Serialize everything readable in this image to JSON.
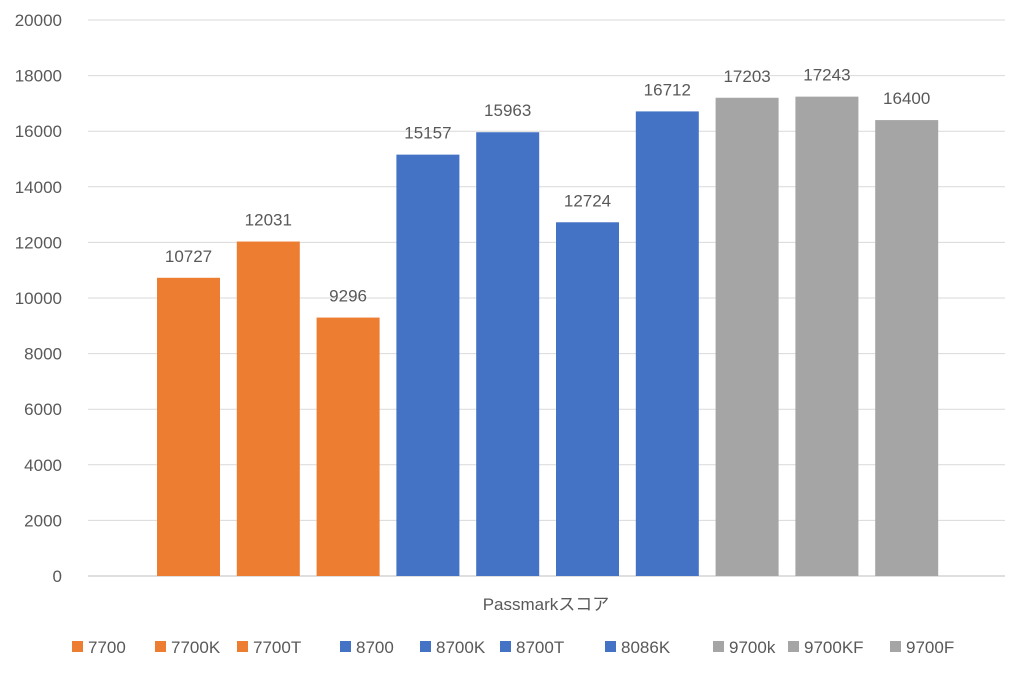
{
  "chart_data": {
    "type": "bar",
    "title": "",
    "xlabel": "Passmarkスコア",
    "ylabel": "",
    "ylim": [
      0,
      20000
    ],
    "yticks": [
      0,
      2000,
      4000,
      6000,
      8000,
      10000,
      12000,
      14000,
      16000,
      18000,
      20000
    ],
    "grid": true,
    "legend_position": "bottom",
    "categories": [
      "Passmarkスコア"
    ],
    "series": [
      {
        "name": "7700",
        "values": [
          10727
        ],
        "color": "#ED7D31"
      },
      {
        "name": "7700K",
        "values": [
          12031
        ],
        "color": "#ED7D31"
      },
      {
        "name": "7700T",
        "values": [
          9296
        ],
        "color": "#ED7D31"
      },
      {
        "name": "8700",
        "values": [
          15157
        ],
        "color": "#4472C4"
      },
      {
        "name": "8700K",
        "values": [
          15963
        ],
        "color": "#4472C4"
      },
      {
        "name": "8700T",
        "values": [
          12724
        ],
        "color": "#4472C4"
      },
      {
        "name": "8086K",
        "values": [
          16712
        ],
        "color": "#4472C4"
      },
      {
        "name": "9700k",
        "values": [
          17203
        ],
        "color": "#A5A5A5"
      },
      {
        "name": "9700KF",
        "values": [
          17243
        ],
        "color": "#A5A5A5"
      },
      {
        "name": "9700F",
        "values": [
          16400
        ],
        "color": "#A5A5A5"
      }
    ]
  }
}
